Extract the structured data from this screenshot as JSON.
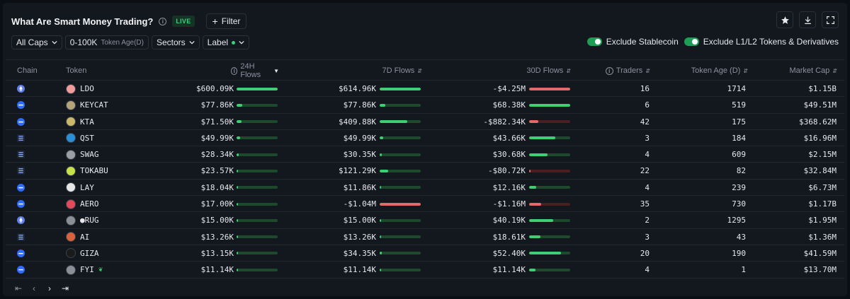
{
  "header": {
    "title": "What Are Smart Money Trading?",
    "live_badge": "LIVE",
    "filter_label": "Filter"
  },
  "filters": {
    "caps_label": "All Caps",
    "token_age_value": "0-100K",
    "token_age_label": "Token Age(D)",
    "sectors_label": "Sectors",
    "label_label": "Label"
  },
  "toggles": {
    "stablecoin": "Exclude Stablecoin",
    "l1l2": "Exclude L1/L2 Tokens & Derivatives"
  },
  "columns": {
    "chain": "Chain",
    "token": "Token",
    "flows_24h": "24H Flows",
    "flows_7d": "7D Flows",
    "flows_30d": "30D Flows",
    "traders": "Traders",
    "token_age": "Token Age (D)",
    "market_cap": "Market Cap"
  },
  "colors": {
    "positive": "#3ecf73",
    "negative": "#e46a6a",
    "track_positive": "#1d4a2c",
    "track_negative": "#4a1f22",
    "ethereum": "#627eea",
    "base": "#2f6bff"
  },
  "rows": [
    {
      "chain": "ethereum",
      "token": "LDO",
      "icon_color": "#f29b9b",
      "f24": "$600.09K",
      "b24": 1.0,
      "f7": "$614.96K",
      "b7": 1.0,
      "f30": "-$4.25M",
      "b30": 1.0,
      "traders": "16",
      "age": "1714",
      "mcap": "$1.15B"
    },
    {
      "chain": "base",
      "token": "KEYCAT",
      "icon_color": "#b5a47a",
      "f24": "$77.86K",
      "b24": 0.13,
      "f7": "$77.86K",
      "b7": 0.13,
      "f30": "$68.38K",
      "b30": 1.0,
      "traders": "6",
      "age": "519",
      "mcap": "$49.51M"
    },
    {
      "chain": "base",
      "token": "KTA",
      "icon_color": "#c9b86a",
      "f24": "$71.50K",
      "b24": 0.12,
      "f7": "$409.88K",
      "b7": 0.67,
      "f30": "-$882.34K",
      "b30": 0.22,
      "traders": "42",
      "age": "175",
      "mcap": "$368.62M"
    },
    {
      "chain": "solana",
      "token": "QST",
      "icon_color": "#2a8fd6",
      "f24": "$49.99K",
      "b24": 0.08,
      "f7": "$49.99K",
      "b7": 0.08,
      "f30": "$43.66K",
      "b30": 0.64,
      "traders": "3",
      "age": "184",
      "mcap": "$16.96M"
    },
    {
      "chain": "solana",
      "token": "SWAG",
      "icon_color": "#9a9ea6",
      "f24": "$28.34K",
      "b24": 0.05,
      "f7": "$30.35K",
      "b7": 0.05,
      "f30": "$30.68K",
      "b30": 0.45,
      "traders": "4",
      "age": "609",
      "mcap": "$2.15M"
    },
    {
      "chain": "solana",
      "token": "TOKABU",
      "icon_color": "#c8e04a",
      "f24": "$23.57K",
      "b24": 0.04,
      "f7": "$121.29K",
      "b7": 0.2,
      "f30": "-$80.72K",
      "b30": 0.02,
      "traders": "22",
      "age": "82",
      "mcap": "$32.84M"
    },
    {
      "chain": "base",
      "token": "LAY",
      "icon_color": "#e6e6e6",
      "f24": "$18.04K",
      "b24": 0.03,
      "f7": "$11.86K",
      "b7": 0.02,
      "f30": "$12.16K",
      "b30": 0.18,
      "traders": "4",
      "age": "239",
      "mcap": "$6.73M"
    },
    {
      "chain": "base",
      "token": "AERO",
      "icon_color": "#e04a5a",
      "f24": "$17.00K",
      "b24": 0.03,
      "f7": "-$1.04M",
      "b7": 1.0,
      "f30": "-$1.16M",
      "b30": 0.3,
      "traders": "35",
      "age": "730",
      "mcap": "$1.17B"
    },
    {
      "chain": "ethereum",
      "token": "●RUG",
      "icon_color": "#8a8f98",
      "f24": "$15.00K",
      "b24": 0.025,
      "f7": "$15.00K",
      "b7": 0.025,
      "f30": "$40.19K",
      "b30": 0.59,
      "traders": "2",
      "age": "1295",
      "mcap": "$1.95M"
    },
    {
      "chain": "solana",
      "token": "AI",
      "icon_color": "#d8623c",
      "f24": "$13.26K",
      "b24": 0.022,
      "f7": "$13.26K",
      "b7": 0.022,
      "f30": "$18.61K",
      "b30": 0.27,
      "traders": "3",
      "age": "43",
      "mcap": "$1.36M"
    },
    {
      "chain": "base",
      "token": "GIZA",
      "icon_color": "#1b1b1b",
      "f24": "$13.15K",
      "b24": 0.022,
      "f7": "$34.35K",
      "b7": 0.06,
      "f30": "$52.40K",
      "b30": 0.77,
      "traders": "20",
      "age": "190",
      "mcap": "$41.59M"
    },
    {
      "chain": "base",
      "token": "FYI",
      "icon_color": "#8a8f98",
      "sprout": true,
      "f24": "$11.14K",
      "b24": 0.018,
      "f7": "$11.14K",
      "b7": 0.018,
      "f30": "$11.14K",
      "b30": 0.16,
      "traders": "4",
      "age": "1",
      "mcap": "$13.70M"
    }
  ]
}
